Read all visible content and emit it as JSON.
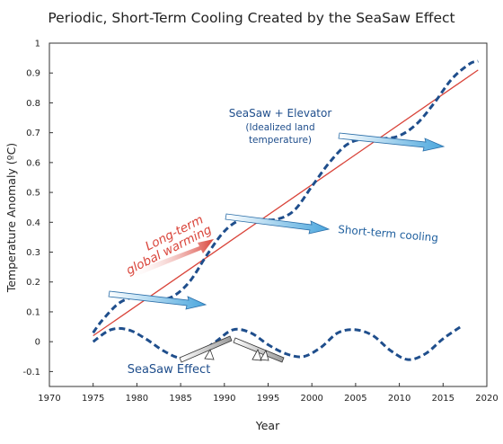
{
  "chart_data": {
    "type": "line",
    "title": "Periodic, Short-Term Cooling Created by the SeaSaw Effect",
    "xlabel": "Year",
    "ylabel": "Temperature Anomaly (ºC)",
    "xlim": [
      1970,
      2020
    ],
    "ylim": [
      -0.15,
      1.0
    ],
    "x_ticks": [
      1970,
      1975,
      1980,
      1985,
      1990,
      1995,
      2000,
      2005,
      2010,
      2015,
      2020
    ],
    "y_ticks": [
      -0.1,
      0,
      0.1,
      0.2,
      0.3,
      0.4,
      0.5,
      0.6,
      0.7,
      0.8,
      0.9,
      1
    ],
    "y_tick_labels": [
      "-0.1",
      "0",
      "0.1",
      "0.2",
      "0.3",
      "0.4",
      "0.5",
      "0.6",
      "0.7",
      "0.8",
      "0.9",
      "1"
    ],
    "series": [
      {
        "style": "solid",
        "color": "#d9443a",
        "x": [
          1975,
          2019
        ],
        "y": [
          0.02,
          0.91
        ]
      },
      {
        "style": "dashed",
        "color": "#1f4e8c",
        "x": [
          1975,
          1976,
          1978,
          1980,
          1982,
          1984,
          1986,
          1988,
          1990,
          1992,
          1994,
          1996,
          1998,
          2000,
          2002,
          2004,
          2006,
          2008,
          2010,
          2012,
          2014,
          2016,
          2018,
          2019
        ],
        "y": [
          0.03,
          0.07,
          0.13,
          0.15,
          0.14,
          0.15,
          0.2,
          0.29,
          0.37,
          0.41,
          0.41,
          0.41,
          0.44,
          0.52,
          0.6,
          0.66,
          0.68,
          0.68,
          0.69,
          0.73,
          0.8,
          0.88,
          0.93,
          0.94
        ]
      },
      {
        "style": "dashed",
        "color": "#1f4e8c",
        "x": [
          1975,
          1977,
          1979,
          1981,
          1983,
          1985,
          1987,
          1989,
          1991,
          1993,
          1995,
          1997,
          1999,
          2001,
          2003,
          2005,
          2007,
          2009,
          2011,
          2013,
          2015,
          2017
        ],
        "y": [
          0.0,
          0.04,
          0.04,
          0.01,
          -0.03,
          -0.055,
          -0.04,
          0.0,
          0.04,
          0.03,
          -0.01,
          -0.04,
          -0.05,
          -0.02,
          0.03,
          0.04,
          0.02,
          -0.03,
          -0.06,
          -0.04,
          0.01,
          0.05
        ]
      }
    ],
    "annotations": {
      "seasaw_elevator": "SeaSaw + Elevator",
      "idealized_line1": "(Idealized land",
      "idealized_line2": "temperature)",
      "short_term_cooling": "Short-term cooling",
      "long_term_line1": "Long-term",
      "long_term_line2": "global warming",
      "seasaw_effect": "SeaSaw Effect"
    },
    "colors": {
      "trend": "#d9443a",
      "dashed": "#1f4e8c",
      "cooling_arrow": "#4aa6dd",
      "warming_arrow": "#d9443a"
    },
    "grid": false
  }
}
